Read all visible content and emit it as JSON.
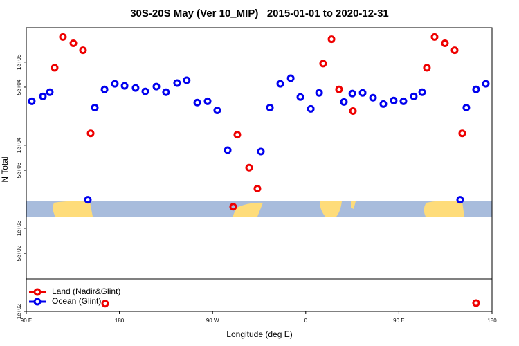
{
  "chart_data": {
    "type": "scatter",
    "title": "30S-20S May (Ver 10_MIP)   2015-01-01 to 2020-12-31",
    "x_label": "Longitude (deg E)",
    "y_label": "N Total",
    "xlim": [
      90,
      540
    ],
    "ylim": [
      100,
      260000
    ],
    "log_y": true,
    "grid": false,
    "legend": "bottom-left",
    "xticks": [
      {
        "value": 90,
        "label": "90 E"
      },
      {
        "value": 180,
        "label": "180"
      },
      {
        "value": 270,
        "label": "90 W"
      },
      {
        "value": 360,
        "label": "0"
      },
      {
        "value": 450,
        "label": "90 E"
      },
      {
        "value": 540,
        "label": "180"
      }
    ],
    "yticks": [
      {
        "value": 100,
        "label": "1e+02"
      },
      {
        "value": 500,
        "label": "5e+02"
      },
      {
        "value": 1000,
        "label": "1e+03"
      },
      {
        "value": 5000,
        "label": "5e+03"
      },
      {
        "value": 10000,
        "label": "1e+04"
      },
      {
        "value": 50000,
        "label": "5e+04"
      },
      {
        "value": 100000,
        "label": "1e+05"
      }
    ],
    "series": [
      {
        "name": "Land (Nadir&Glint)",
        "color": "#ee0000",
        "x": [
          117.4,
          125.4,
          135.5,
          144.8,
          152.2,
          166.2,
          289.9,
          293.9,
          305.3,
          313.3,
          376.8,
          384.9,
          392.2,
          405.6,
          477.1,
          484.5,
          494.5,
          503.9,
          511.2,
          524.6
        ],
        "values": [
          85600,
          201000,
          169000,
          139000,
          13900,
          124,
          1820,
          13400,
          5380,
          3010,
          96200,
          189000,
          47000,
          25800,
          85600,
          201000,
          169000,
          139000,
          13900,
          126
        ]
      },
      {
        "name": "Ocean (Glint)",
        "color": "#0000ee",
        "x": [
          95.3,
          106,
          112.7,
          149.5,
          156.2,
          165.6,
          175.6,
          185,
          195.6,
          205,
          215.7,
          225,
          235.7,
          245,
          255.2,
          265.2,
          274.5,
          284.6,
          316.7,
          325.4,
          335.4,
          345.5,
          354.8,
          364.9,
          372.9,
          396.9,
          405,
          415,
          425,
          435,
          445,
          454.4,
          464.4,
          472.5,
          509.2,
          515.2,
          524.6,
          534
        ],
        "values": [
          33800,
          38700,
          43500,
          2210,
          28400,
          47000,
          54900,
          51800,
          48900,
          44400,
          50800,
          43500,
          56000,
          60500,
          32600,
          33800,
          26300,
          8730,
          8400,
          28400,
          54900,
          64100,
          38000,
          27400,
          42700,
          33200,
          41900,
          42700,
          37300,
          31300,
          34500,
          33800,
          38700,
          43500,
          2210,
          28400,
          47000,
          54900
        ]
      }
    ]
  }
}
